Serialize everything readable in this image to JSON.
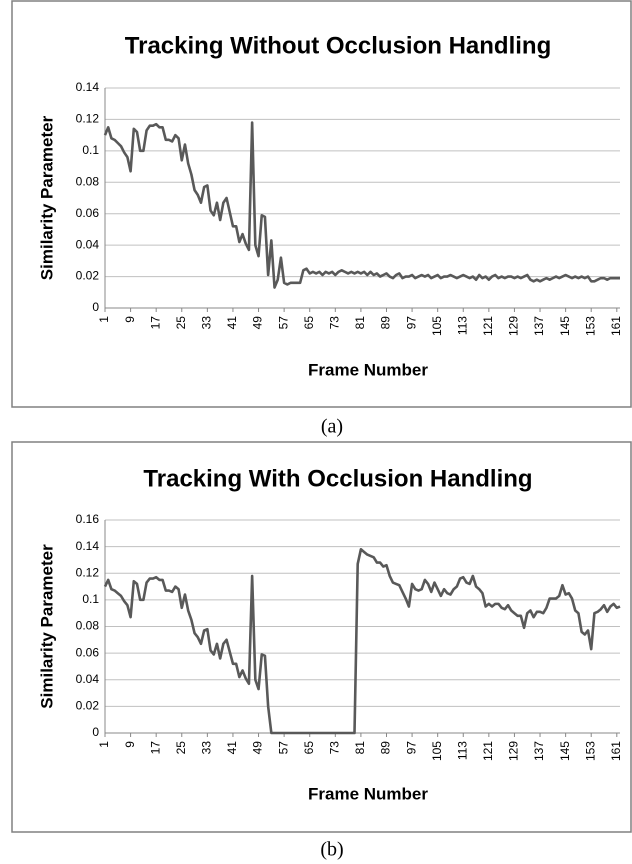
{
  "chart_data": [
    {
      "type": "line",
      "title": "Tracking Without Occlusion Handling",
      "x_label": "Frame Number",
      "y_label": "Similarity Parameter",
      "caption": "(a)",
      "x": [
        1,
        2,
        3,
        4,
        5,
        6,
        7,
        8,
        9,
        10,
        11,
        12,
        13,
        14,
        15,
        16,
        17,
        18,
        19,
        20,
        21,
        22,
        23,
        24,
        25,
        26,
        27,
        28,
        29,
        30,
        31,
        32,
        33,
        34,
        35,
        36,
        37,
        38,
        39,
        40,
        41,
        42,
        43,
        44,
        45,
        46,
        47,
        48,
        49,
        50,
        51,
        52,
        53,
        54,
        55,
        56,
        57,
        58,
        59,
        60,
        61,
        62,
        63,
        64,
        65,
        66,
        67,
        68,
        69,
        70,
        71,
        72,
        73,
        74,
        75,
        76,
        77,
        78,
        79,
        80,
        81,
        82,
        83,
        84,
        85,
        86,
        87,
        88,
        89,
        90,
        91,
        92,
        93,
        94,
        95,
        96,
        97,
        98,
        99,
        100,
        101,
        102,
        103,
        104,
        105,
        106,
        107,
        108,
        109,
        110,
        111,
        112,
        113,
        114,
        115,
        116,
        117,
        118,
        119,
        120,
        121,
        122,
        123,
        124,
        125,
        126,
        127,
        128,
        129,
        130,
        131,
        132,
        133,
        134,
        135,
        136,
        137,
        138,
        139,
        140,
        141,
        142,
        143,
        144,
        145,
        146,
        147,
        148,
        149,
        150,
        151,
        152,
        153,
        154,
        155,
        156,
        157,
        158,
        159,
        160,
        161,
        162
      ],
      "series": [
        {
          "color": "#595959",
          "values": [
            0.11,
            0.115,
            0.108,
            0.107,
            0.105,
            0.103,
            0.099,
            0.096,
            0.087,
            0.114,
            0.112,
            0.1,
            0.1,
            0.113,
            0.116,
            0.116,
            0.117,
            0.115,
            0.115,
            0.107,
            0.107,
            0.106,
            0.11,
            0.108,
            0.094,
            0.104,
            0.092,
            0.085,
            0.075,
            0.072,
            0.067,
            0.077,
            0.078,
            0.062,
            0.059,
            0.067,
            0.056,
            0.067,
            0.07,
            0.061,
            0.052,
            0.052,
            0.042,
            0.047,
            0.041,
            0.037,
            0.118,
            0.04,
            0.033,
            0.059,
            0.058,
            0.021,
            0.043,
            0.013,
            0.018,
            0.032,
            0.016,
            0.015,
            0.016,
            0.016,
            0.016,
            0.016,
            0.024,
            0.025,
            0.022,
            0.023,
            0.022,
            0.023,
            0.021,
            0.023,
            0.022,
            0.023,
            0.021,
            0.023,
            0.024,
            0.023,
            0.022,
            0.023,
            0.022,
            0.023,
            0.022,
            0.023,
            0.021,
            0.023,
            0.021,
            0.022,
            0.02,
            0.021,
            0.022,
            0.02,
            0.019,
            0.021,
            0.022,
            0.019,
            0.02,
            0.02,
            0.021,
            0.019,
            0.02,
            0.021,
            0.02,
            0.021,
            0.019,
            0.02,
            0.021,
            0.019,
            0.02,
            0.02,
            0.021,
            0.02,
            0.019,
            0.02,
            0.021,
            0.02,
            0.019,
            0.02,
            0.018,
            0.021,
            0.019,
            0.02,
            0.018,
            0.02,
            0.021,
            0.019,
            0.02,
            0.019,
            0.02,
            0.02,
            0.019,
            0.02,
            0.019,
            0.02,
            0.021,
            0.018,
            0.017,
            0.018,
            0.017,
            0.018,
            0.019,
            0.018,
            0.019,
            0.02,
            0.019,
            0.02,
            0.021,
            0.02,
            0.019,
            0.02,
            0.019,
            0.02,
            0.019,
            0.02,
            0.017,
            0.017,
            0.018,
            0.019,
            0.019,
            0.018,
            0.019,
            0.019,
            0.019,
            0.019
          ]
        }
      ],
      "xlim": [
        1,
        162
      ],
      "xticks": [
        1,
        9,
        17,
        25,
        33,
        41,
        49,
        57,
        65,
        73,
        81,
        89,
        97,
        105,
        113,
        121,
        129,
        137,
        145,
        153,
        161
      ],
      "ylim": [
        0,
        0.14
      ],
      "yticks": [
        0,
        0.02,
        0.04,
        0.06,
        0.08,
        0.1,
        0.12,
        0.14
      ],
      "grid": true
    },
    {
      "type": "line",
      "title": "Tracking With Occlusion Handling",
      "x_label": "Frame Number",
      "y_label": "Similarity Parameter",
      "caption": "(b)",
      "x": [
        1,
        2,
        3,
        4,
        5,
        6,
        7,
        8,
        9,
        10,
        11,
        12,
        13,
        14,
        15,
        16,
        17,
        18,
        19,
        20,
        21,
        22,
        23,
        24,
        25,
        26,
        27,
        28,
        29,
        30,
        31,
        32,
        33,
        34,
        35,
        36,
        37,
        38,
        39,
        40,
        41,
        42,
        43,
        44,
        45,
        46,
        47,
        48,
        49,
        50,
        51,
        52,
        53,
        54,
        55,
        56,
        57,
        58,
        59,
        60,
        61,
        62,
        63,
        64,
        65,
        66,
        67,
        68,
        69,
        70,
        71,
        72,
        73,
        74,
        75,
        76,
        77,
        78,
        79,
        80,
        81,
        82,
        83,
        84,
        85,
        86,
        87,
        88,
        89,
        90,
        91,
        92,
        93,
        94,
        95,
        96,
        97,
        98,
        99,
        100,
        101,
        102,
        103,
        104,
        105,
        106,
        107,
        108,
        109,
        110,
        111,
        112,
        113,
        114,
        115,
        116,
        117,
        118,
        119,
        120,
        121,
        122,
        123,
        124,
        125,
        126,
        127,
        128,
        129,
        130,
        131,
        132,
        133,
        134,
        135,
        136,
        137,
        138,
        139,
        140,
        141,
        142,
        143,
        144,
        145,
        146,
        147,
        148,
        149,
        150,
        151,
        152,
        153,
        154,
        155,
        156,
        157,
        158,
        159,
        160,
        161,
        162
      ],
      "series": [
        {
          "color": "#595959",
          "values": [
            0.11,
            0.115,
            0.108,
            0.107,
            0.105,
            0.103,
            0.099,
            0.096,
            0.087,
            0.114,
            0.112,
            0.1,
            0.1,
            0.113,
            0.116,
            0.116,
            0.117,
            0.115,
            0.115,
            0.107,
            0.107,
            0.106,
            0.11,
            0.108,
            0.094,
            0.104,
            0.092,
            0.085,
            0.075,
            0.072,
            0.067,
            0.077,
            0.078,
            0.062,
            0.059,
            0.067,
            0.056,
            0.067,
            0.07,
            0.061,
            0.052,
            0.052,
            0.042,
            0.047,
            0.041,
            0.037,
            0.118,
            0.04,
            0.033,
            0.059,
            0.058,
            0.02,
            0,
            0,
            0,
            0,
            0,
            0,
            0,
            0,
            0,
            0,
            0,
            0,
            0,
            0,
            0,
            0,
            0,
            0,
            0,
            0,
            0,
            0,
            0,
            0,
            0,
            0,
            0,
            0.127,
            0.138,
            0.136,
            0.134,
            0.133,
            0.132,
            0.128,
            0.128,
            0.125,
            0.126,
            0.118,
            0.113,
            0.112,
            0.111,
            0.106,
            0.101,
            0.095,
            0.112,
            0.108,
            0.107,
            0.108,
            0.115,
            0.112,
            0.106,
            0.113,
            0.108,
            0.103,
            0.108,
            0.105,
            0.104,
            0.108,
            0.11,
            0.116,
            0.117,
            0.113,
            0.112,
            0.118,
            0.11,
            0.108,
            0.105,
            0.095,
            0.097,
            0.095,
            0.097,
            0.097,
            0.094,
            0.093,
            0.096,
            0.092,
            0.09,
            0.088,
            0.088,
            0.079,
            0.09,
            0.092,
            0.087,
            0.091,
            0.091,
            0.09,
            0.094,
            0.101,
            0.101,
            0.101,
            0.103,
            0.111,
            0.104,
            0.105,
            0.101,
            0.092,
            0.09,
            0.076,
            0.074,
            0.077,
            0.063,
            0.09,
            0.091,
            0.093,
            0.096,
            0.091,
            0.095,
            0.097,
            0.094,
            0.095
          ]
        }
      ],
      "xlim": [
        1,
        162
      ],
      "xticks": [
        1,
        9,
        17,
        25,
        33,
        41,
        49,
        57,
        65,
        73,
        81,
        89,
        97,
        105,
        113,
        121,
        129,
        137,
        145,
        153,
        161
      ],
      "ylim": [
        0,
        0.16
      ],
      "yticks": [
        0,
        0.02,
        0.04,
        0.06,
        0.08,
        0.1,
        0.12,
        0.14,
        0.16
      ],
      "grid": true
    }
  ]
}
